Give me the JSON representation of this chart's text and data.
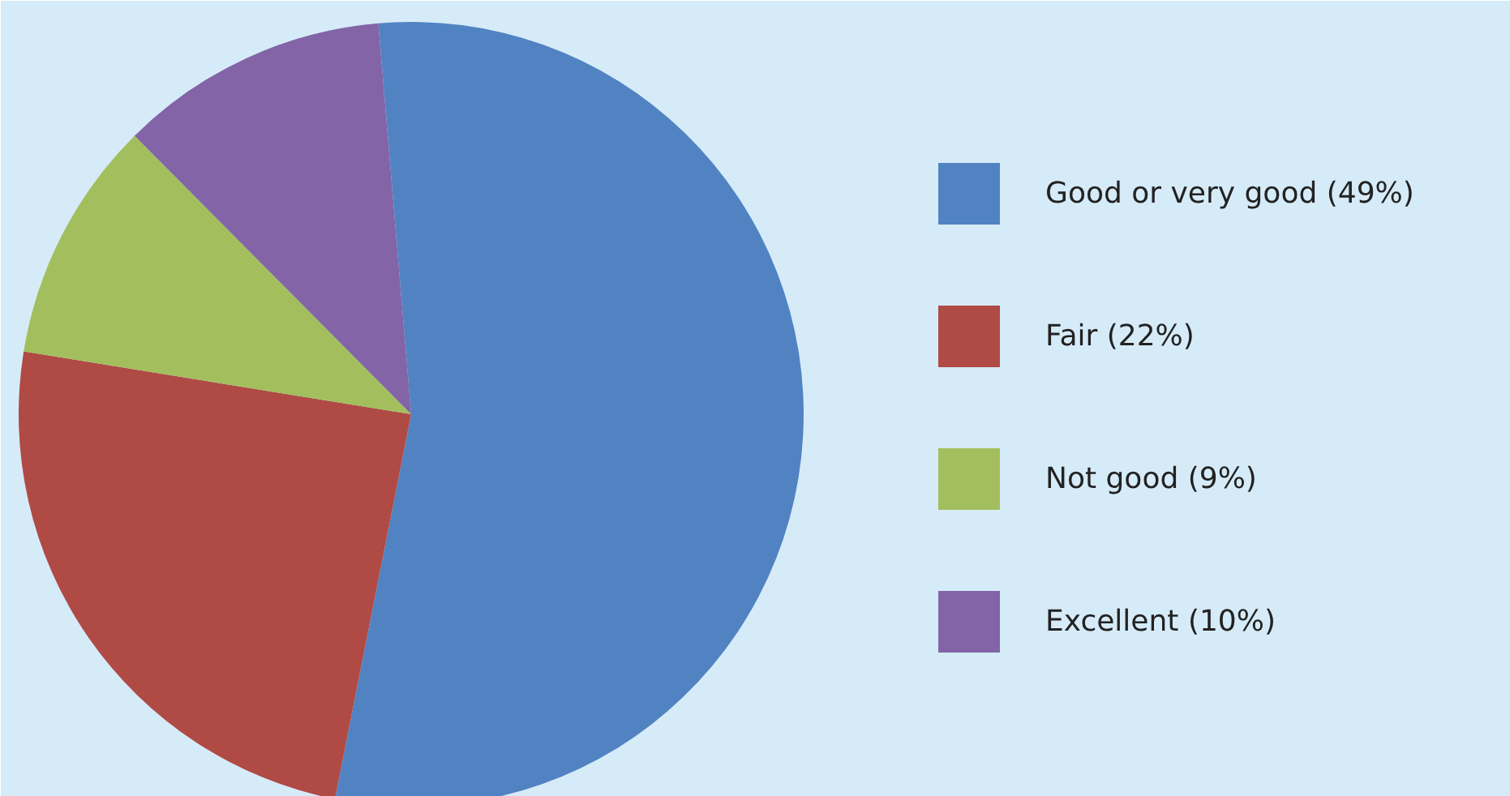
{
  "chart_data": {
    "type": "pie",
    "categories": [
      "Good or very good (49%)",
      "Fair (22%)",
      "Not good (9%)",
      "Excellent (10%)"
    ],
    "values": [
      49,
      22,
      9,
      10
    ],
    "colors": [
      "#5183c2",
      "#b04a45",
      "#a3bf5d",
      "#8364a7"
    ],
    "legend": "right"
  }
}
